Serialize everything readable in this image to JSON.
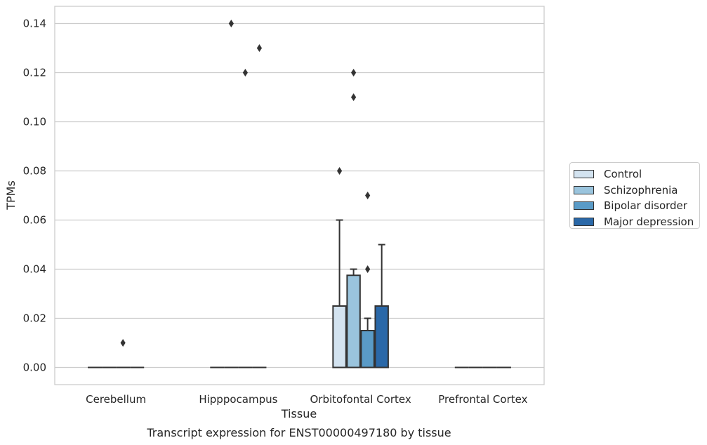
{
  "chart_data": {
    "type": "box",
    "title": "Transcript expression for ENST00000497180 by tissue",
    "xlabel": "Tissue",
    "ylabel": "TPMs",
    "ylim": [
      -0.007,
      0.147
    ],
    "yticks": [
      "0.00",
      "0.02",
      "0.04",
      "0.06",
      "0.08",
      "0.10",
      "0.12",
      "0.14"
    ],
    "grid": true,
    "legend_position": "right",
    "categories": [
      "Cerebellum",
      "Hipppocampus",
      "Orbitofontal Cortex",
      "Prefrontal Cortex"
    ],
    "series": [
      {
        "name": "Control",
        "color": "#d3e3f0",
        "boxes": [
          {
            "q1": 0,
            "median": 0,
            "q3": 0,
            "whisker_low": 0,
            "whisker_high": 0,
            "outliers": []
          },
          {
            "q1": 0,
            "median": 0,
            "q3": 0,
            "whisker_low": 0,
            "whisker_high": 0,
            "outliers": []
          },
          {
            "q1": 0,
            "median": 0,
            "q3": 0.025,
            "whisker_low": 0,
            "whisker_high": 0.06,
            "outliers": [
              0.08
            ]
          },
          {
            "q1": 0,
            "median": 0,
            "q3": 0,
            "whisker_low": 0,
            "whisker_high": 0,
            "outliers": []
          }
        ]
      },
      {
        "name": "Schizophrenia",
        "color": "#9ac4dd",
        "boxes": [
          {
            "q1": 0,
            "median": 0,
            "q3": 0,
            "whisker_low": 0,
            "whisker_high": 0,
            "outliers": []
          },
          {
            "q1": 0,
            "median": 0,
            "q3": 0,
            "whisker_low": 0,
            "whisker_high": 0,
            "outliers": [
              0.14
            ]
          },
          {
            "q1": 0,
            "median": 0,
            "q3": 0.0375,
            "whisker_low": 0,
            "whisker_high": 0.04,
            "outliers": [
              0.12,
              0.11
            ]
          },
          {
            "q1": 0,
            "median": 0,
            "q3": 0,
            "whisker_low": 0,
            "whisker_high": 0,
            "outliers": []
          }
        ]
      },
      {
        "name": "Bipolar disorder",
        "color": "#5a9bc7",
        "boxes": [
          {
            "q1": 0,
            "median": 0,
            "q3": 0,
            "whisker_low": 0,
            "whisker_high": 0,
            "outliers": [
              0.01
            ]
          },
          {
            "q1": 0,
            "median": 0,
            "q3": 0,
            "whisker_low": 0,
            "whisker_high": 0,
            "outliers": [
              0.12
            ]
          },
          {
            "q1": 0,
            "median": 0,
            "q3": 0.015,
            "whisker_low": 0,
            "whisker_high": 0.02,
            "outliers": [
              0.07,
              0.04
            ]
          },
          {
            "q1": 0,
            "median": 0,
            "q3": 0,
            "whisker_low": 0,
            "whisker_high": 0,
            "outliers": []
          }
        ]
      },
      {
        "name": "Major depression",
        "color": "#2a68a8",
        "boxes": [
          {
            "q1": 0,
            "median": 0,
            "q3": 0,
            "whisker_low": 0,
            "whisker_high": 0,
            "outliers": []
          },
          {
            "q1": 0,
            "median": 0,
            "q3": 0,
            "whisker_low": 0,
            "whisker_high": 0,
            "outliers": [
              0.13
            ]
          },
          {
            "q1": 0,
            "median": 0,
            "q3": 0.025,
            "whisker_low": 0,
            "whisker_high": 0.05,
            "outliers": []
          },
          {
            "q1": 0,
            "median": 0,
            "q3": 0,
            "whisker_low": 0,
            "whisker_high": 0,
            "outliers": []
          }
        ]
      }
    ]
  }
}
